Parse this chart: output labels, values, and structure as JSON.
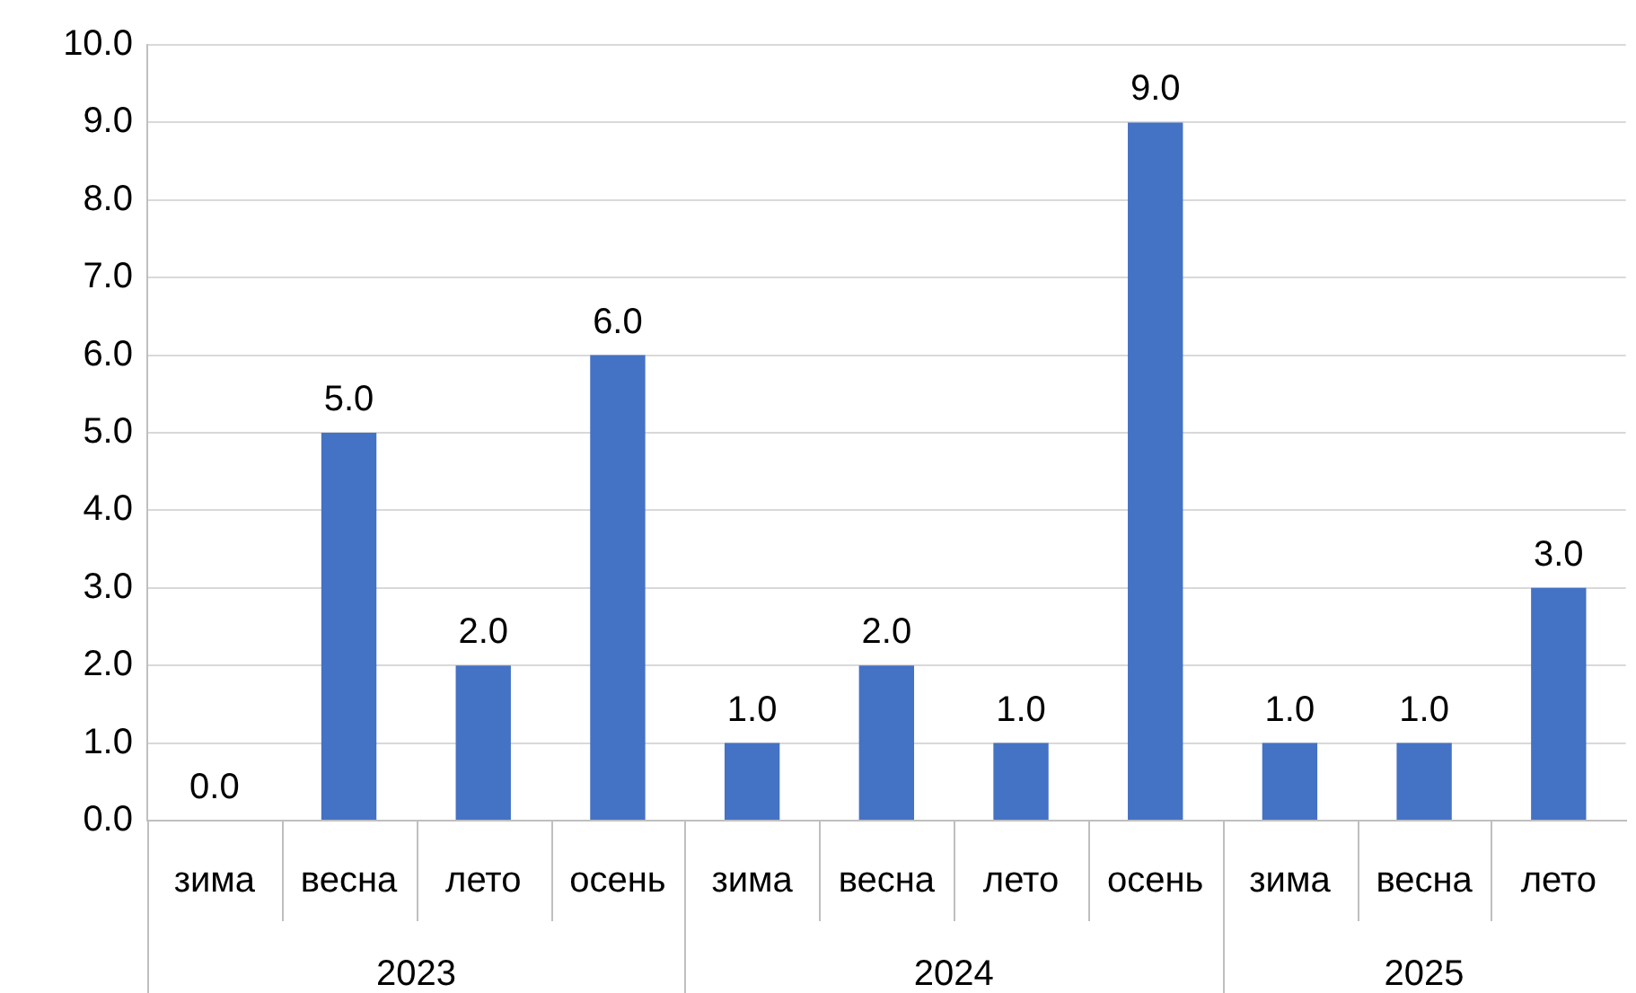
{
  "chart_data": {
    "type": "bar",
    "categories": [
      "зима",
      "весна",
      "лето",
      "осень",
      "зима",
      "весна",
      "лето",
      "осень",
      "зима",
      "весна",
      "лето"
    ],
    "values": [
      0,
      5,
      2,
      6,
      1,
      2,
      1,
      9,
      1,
      1,
      3
    ],
    "value_labels": [
      "0.0",
      "5.0",
      "2.0",
      "6.0",
      "1.0",
      "2.0",
      "1.0",
      "9.0",
      "1.0",
      "1.0",
      "3.0"
    ],
    "color": "#4472c4",
    "ylim": [
      0,
      10
    ],
    "yticks": [
      {
        "value": 0,
        "label": "0.0"
      },
      {
        "value": 1,
        "label": "1.0"
      },
      {
        "value": 2,
        "label": "2.0"
      },
      {
        "value": 3,
        "label": "3.0"
      },
      {
        "value": 4,
        "label": "4.0"
      },
      {
        "value": 5,
        "label": "5.0"
      },
      {
        "value": 6,
        "label": "6.0"
      },
      {
        "value": 7,
        "label": "7.0"
      },
      {
        "value": 8,
        "label": "8.0"
      },
      {
        "value": 9,
        "label": "9.0"
      },
      {
        "value": 10,
        "label": "10.0"
      }
    ],
    "grid": "y",
    "annotations": [
      "2023",
      "2024",
      "2025"
    ]
  }
}
